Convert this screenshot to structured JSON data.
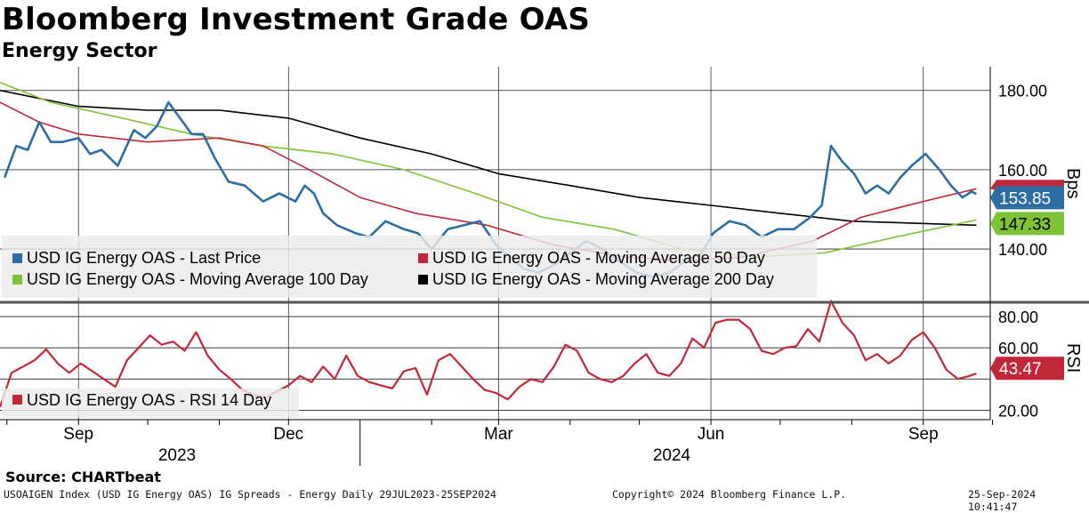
{
  "header": {
    "title": "Bloomberg Investment Grade OAS",
    "subtitle": "Energy Sector"
  },
  "footer": {
    "source": "Source: CHARTbeat",
    "ticker_line": "USOAIGEN Index (USD IG Energy OAS) IG Spreads - Energy  Daily 29JUL2023-25SEP2024",
    "copyright": "Copyright© 2024 Bloomberg Finance L.P.",
    "timestamp": "25-Sep-2024 10:41:47"
  },
  "chart_data": [
    {
      "type": "line",
      "panel": "upper",
      "y_axis_label": "Bps",
      "y_ticks": [
        140,
        160,
        180
      ],
      "y_tick_labels": [
        "140.00",
        "160.00",
        "180.00"
      ],
      "ylim": [
        127,
        186
      ],
      "grid": true,
      "legend_position": "bottom-left",
      "x_axis": {
        "month_ticks": [
          "Sep",
          "Dec",
          "Mar",
          "Jun",
          "Sep"
        ],
        "year_labels": [
          "2023",
          "2024"
        ],
        "range": [
          "2023-07-29",
          "2024-09-25"
        ]
      },
      "series": [
        {
          "name": "USD IG Energy OAS - Last Price",
          "color": "#2e6da4",
          "last_value_label": "153.85",
          "points": [
            [
              "2023-07-31",
              158
            ],
            [
              "2023-08-05",
              166
            ],
            [
              "2023-08-10",
              165
            ],
            [
              "2023-08-15",
              172
            ],
            [
              "2023-08-20",
              167
            ],
            [
              "2023-08-25",
              167
            ],
            [
              "2023-09-01",
              168
            ],
            [
              "2023-09-06",
              164
            ],
            [
              "2023-09-11",
              165
            ],
            [
              "2023-09-18",
              161
            ],
            [
              "2023-09-25",
              170
            ],
            [
              "2023-09-30",
              168
            ],
            [
              "2023-10-05",
              171
            ],
            [
              "2023-10-10",
              177
            ],
            [
              "2023-10-15",
              173
            ],
            [
              "2023-10-20",
              169
            ],
            [
              "2023-10-25",
              169
            ],
            [
              "2023-10-30",
              163
            ],
            [
              "2023-11-05",
              157
            ],
            [
              "2023-11-12",
              156
            ],
            [
              "2023-11-20",
              152
            ],
            [
              "2023-11-27",
              154
            ],
            [
              "2023-12-04",
              152
            ],
            [
              "2023-12-08",
              156
            ],
            [
              "2023-12-12",
              154
            ],
            [
              "2023-12-16",
              149
            ],
            [
              "2023-12-22",
              146
            ],
            [
              "2023-12-30",
              144
            ],
            [
              "2024-01-05",
              143
            ],
            [
              "2024-01-12",
              147
            ],
            [
              "2024-01-20",
              145
            ],
            [
              "2024-01-26",
              144
            ],
            [
              "2024-02-01",
              140
            ],
            [
              "2024-02-08",
              145
            ],
            [
              "2024-02-15",
              146
            ],
            [
              "2024-02-22",
              147
            ],
            [
              "2024-02-29",
              141
            ],
            [
              "2024-03-06",
              138
            ],
            [
              "2024-03-12",
              135
            ],
            [
              "2024-03-18",
              134
            ],
            [
              "2024-03-25",
              136
            ],
            [
              "2024-04-01",
              139
            ],
            [
              "2024-04-08",
              142
            ],
            [
              "2024-04-15",
              140
            ],
            [
              "2024-04-22",
              137
            ],
            [
              "2024-04-30",
              134
            ],
            [
              "2024-05-07",
              133
            ],
            [
              "2024-05-14",
              134
            ],
            [
              "2024-05-21",
              137
            ],
            [
              "2024-05-28",
              139
            ],
            [
              "2024-06-02",
              144
            ],
            [
              "2024-06-09",
              147
            ],
            [
              "2024-06-16",
              146
            ],
            [
              "2024-06-23",
              143
            ],
            [
              "2024-06-30",
              145
            ],
            [
              "2024-07-07",
              145
            ],
            [
              "2024-07-14",
              148
            ],
            [
              "2024-07-19",
              151
            ],
            [
              "2024-07-23",
              166
            ],
            [
              "2024-07-28",
              162
            ],
            [
              "2024-08-02",
              159
            ],
            [
              "2024-08-07",
              154
            ],
            [
              "2024-08-12",
              156
            ],
            [
              "2024-08-17",
              154
            ],
            [
              "2024-08-22",
              158
            ],
            [
              "2024-08-27",
              161
            ],
            [
              "2024-09-02",
              164
            ],
            [
              "2024-09-08",
              160
            ],
            [
              "2024-09-13",
              156
            ],
            [
              "2024-09-18",
              153
            ],
            [
              "2024-09-22",
              154.5
            ],
            [
              "2024-09-24",
              153.85
            ]
          ]
        },
        {
          "name": "USD IG Energy OAS - Moving Average 50 Day",
          "color": "#c0283a",
          "points": [
            [
              "2023-07-29",
              177
            ],
            [
              "2023-08-15",
              172
            ],
            [
              "2023-09-01",
              169
            ],
            [
              "2023-10-01",
              167
            ],
            [
              "2023-11-01",
              168
            ],
            [
              "2023-11-20",
              166
            ],
            [
              "2023-12-10",
              160
            ],
            [
              "2024-01-01",
              153
            ],
            [
              "2024-01-25",
              149
            ],
            [
              "2024-02-25",
              146
            ],
            [
              "2024-03-25",
              141
            ],
            [
              "2024-04-25",
              138
            ],
            [
              "2024-05-20",
              137
            ],
            [
              "2024-06-15",
              138
            ],
            [
              "2024-07-15",
              142
            ],
            [
              "2024-08-05",
              148
            ],
            [
              "2024-09-01",
              152
            ],
            [
              "2024-09-24",
              155.2
            ]
          ]
        },
        {
          "name": "USD IG Energy OAS - Moving Average 100 Day",
          "color": "#7ec23a",
          "last_value_label": "147.33",
          "points": [
            [
              "2023-07-29",
              182
            ],
            [
              "2023-08-20",
              177
            ],
            [
              "2023-09-20",
              173
            ],
            [
              "2023-10-20",
              169
            ],
            [
              "2023-11-20",
              166
            ],
            [
              "2023-12-20",
              164
            ],
            [
              "2024-01-20",
              160
            ],
            [
              "2024-02-20",
              154
            ],
            [
              "2024-03-20",
              148
            ],
            [
              "2024-04-20",
              145
            ],
            [
              "2024-05-20",
              140
            ],
            [
              "2024-06-20",
              138
            ],
            [
              "2024-07-20",
              139
            ],
            [
              "2024-08-20",
              143
            ],
            [
              "2024-09-24",
              147.33
            ]
          ]
        },
        {
          "name": "USD IG Energy OAS - Moving Average 200 Day",
          "color": "#000000",
          "points": [
            [
              "2023-07-29",
              180
            ],
            [
              "2023-09-01",
              176
            ],
            [
              "2023-10-01",
              175
            ],
            [
              "2023-11-01",
              175
            ],
            [
              "2023-12-01",
              173
            ],
            [
              "2024-01-01",
              168
            ],
            [
              "2024-02-01",
              164
            ],
            [
              "2024-03-01",
              159
            ],
            [
              "2024-04-01",
              156
            ],
            [
              "2024-05-01",
              153
            ],
            [
              "2024-06-01",
              151
            ],
            [
              "2024-07-01",
              149
            ],
            [
              "2024-08-01",
              147
            ],
            [
              "2024-09-24",
              146
            ]
          ]
        }
      ]
    },
    {
      "type": "line",
      "panel": "lower",
      "y_axis_label": "RSI",
      "y_ticks": [
        20,
        40,
        60,
        80
      ],
      "y_tick_labels": [
        "20.00",
        "",
        "60.00",
        "80.00"
      ],
      "ylim": [
        14,
        88
      ],
      "grid": true,
      "legend_position": "bottom-left",
      "series": [
        {
          "name": "USD IG Energy OAS - RSI 14 Day",
          "color": "#c0283a",
          "last_value_label": "43.47",
          "points": [
            [
              "2023-07-29",
              22
            ],
            [
              "2023-08-03",
              44
            ],
            [
              "2023-08-08",
              48
            ],
            [
              "2023-08-13",
              52
            ],
            [
              "2023-08-18",
              59
            ],
            [
              "2023-08-23",
              50
            ],
            [
              "2023-08-28",
              44
            ],
            [
              "2023-09-02",
              50
            ],
            [
              "2023-09-07",
              45
            ],
            [
              "2023-09-12",
              40
            ],
            [
              "2023-09-17",
              35
            ],
            [
              "2023-09-22",
              52
            ],
            [
              "2023-09-27",
              60
            ],
            [
              "2023-10-02",
              68
            ],
            [
              "2023-10-07",
              62
            ],
            [
              "2023-10-12",
              64
            ],
            [
              "2023-10-17",
              58
            ],
            [
              "2023-10-22",
              70
            ],
            [
              "2023-10-27",
              55
            ],
            [
              "2023-11-01",
              46
            ],
            [
              "2023-11-06",
              40
            ],
            [
              "2023-11-11",
              33
            ],
            [
              "2023-11-16",
              30
            ],
            [
              "2023-11-21",
              28
            ],
            [
              "2023-11-26",
              32
            ],
            [
              "2023-12-01",
              36
            ],
            [
              "2023-12-06",
              42
            ],
            [
              "2023-12-11",
              38
            ],
            [
              "2023-12-16",
              48
            ],
            [
              "2023-12-21",
              40
            ],
            [
              "2023-12-26",
              55
            ],
            [
              "2023-12-31",
              42
            ],
            [
              "2024-01-05",
              38
            ],
            [
              "2024-01-10",
              36
            ],
            [
              "2024-01-15",
              34
            ],
            [
              "2024-01-20",
              45
            ],
            [
              "2024-01-25",
              47
            ],
            [
              "2024-01-30",
              30
            ],
            [
              "2024-02-04",
              52
            ],
            [
              "2024-02-09",
              56
            ],
            [
              "2024-02-14",
              48
            ],
            [
              "2024-02-19",
              40
            ],
            [
              "2024-02-24",
              33
            ],
            [
              "2024-02-29",
              31
            ],
            [
              "2024-03-05",
              27
            ],
            [
              "2024-03-10",
              35
            ],
            [
              "2024-03-15",
              40
            ],
            [
              "2024-03-20",
              38
            ],
            [
              "2024-03-25",
              48
            ],
            [
              "2024-03-30",
              62
            ],
            [
              "2024-04-04",
              58
            ],
            [
              "2024-04-09",
              44
            ],
            [
              "2024-04-14",
              40
            ],
            [
              "2024-04-19",
              38
            ],
            [
              "2024-04-24",
              42
            ],
            [
              "2024-04-29",
              50
            ],
            [
              "2024-05-04",
              56
            ],
            [
              "2024-05-09",
              44
            ],
            [
              "2024-05-14",
              42
            ],
            [
              "2024-05-19",
              50
            ],
            [
              "2024-05-24",
              66
            ],
            [
              "2024-05-29",
              60
            ],
            [
              "2024-06-03",
              76
            ],
            [
              "2024-06-08",
              78
            ],
            [
              "2024-06-13",
              78
            ],
            [
              "2024-06-18",
              72
            ],
            [
              "2024-06-23",
              58
            ],
            [
              "2024-06-28",
              56
            ],
            [
              "2024-07-03",
              60
            ],
            [
              "2024-07-08",
              61
            ],
            [
              "2024-07-13",
              72
            ],
            [
              "2024-07-18",
              64
            ],
            [
              "2024-07-23",
              90
            ],
            [
              "2024-07-28",
              76
            ],
            [
              "2024-08-02",
              68
            ],
            [
              "2024-08-07",
              52
            ],
            [
              "2024-08-12",
              56
            ],
            [
              "2024-08-17",
              50
            ],
            [
              "2024-08-22",
              55
            ],
            [
              "2024-08-27",
              65
            ],
            [
              "2024-09-01",
              70
            ],
            [
              "2024-09-06",
              60
            ],
            [
              "2024-09-11",
              46
            ],
            [
              "2024-09-16",
              40
            ],
            [
              "2024-09-21",
              42
            ],
            [
              "2024-09-24",
              43.47
            ]
          ]
        }
      ]
    }
  ]
}
